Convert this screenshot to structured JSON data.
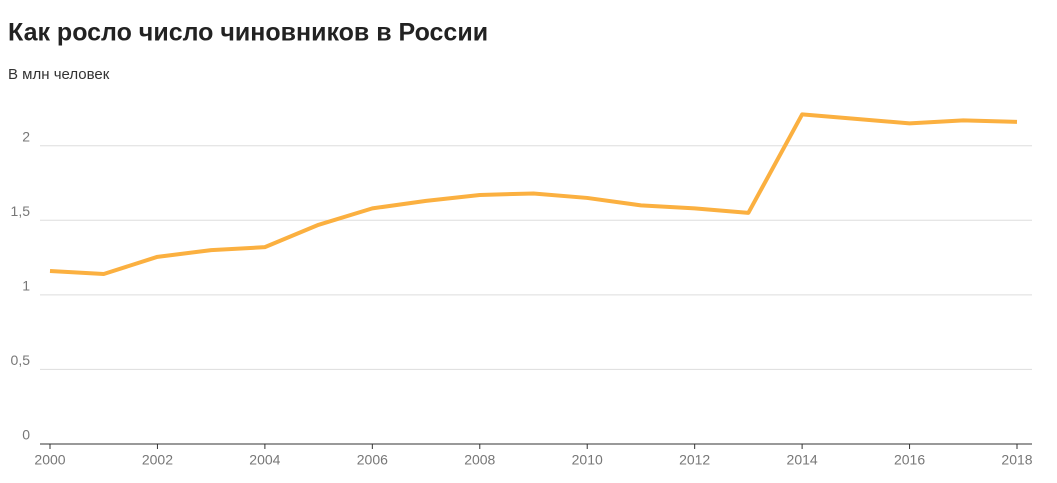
{
  "chart_data": {
    "type": "line",
    "title": "Как росло число чиновников в России",
    "subtitle": "В млн человек",
    "x": [
      2000,
      2001,
      2002,
      2003,
      2004,
      2005,
      2006,
      2007,
      2008,
      2009,
      2010,
      2011,
      2012,
      2013,
      2014,
      2015,
      2016,
      2017,
      2018
    ],
    "series": [
      {
        "color": "#fbb040",
        "values": [
          1.16,
          1.14,
          1.255,
          1.3,
          1.32,
          1.47,
          1.58,
          1.63,
          1.67,
          1.68,
          1.65,
          1.6,
          1.58,
          1.55,
          2.21,
          2.18,
          2.15,
          2.17,
          2.16
        ]
      }
    ],
    "xlim": [
      2000,
      2018
    ],
    "xticks": [
      2000,
      2002,
      2004,
      2006,
      2008,
      2010,
      2012,
      2014,
      2016,
      2018
    ],
    "ylim": [
      0,
      2.3
    ],
    "yticks": [
      0,
      {
        "value": 0.5,
        "label": "0,5"
      },
      1,
      {
        "value": 1.5,
        "label": "1,5"
      },
      2
    ],
    "grid": true
  }
}
